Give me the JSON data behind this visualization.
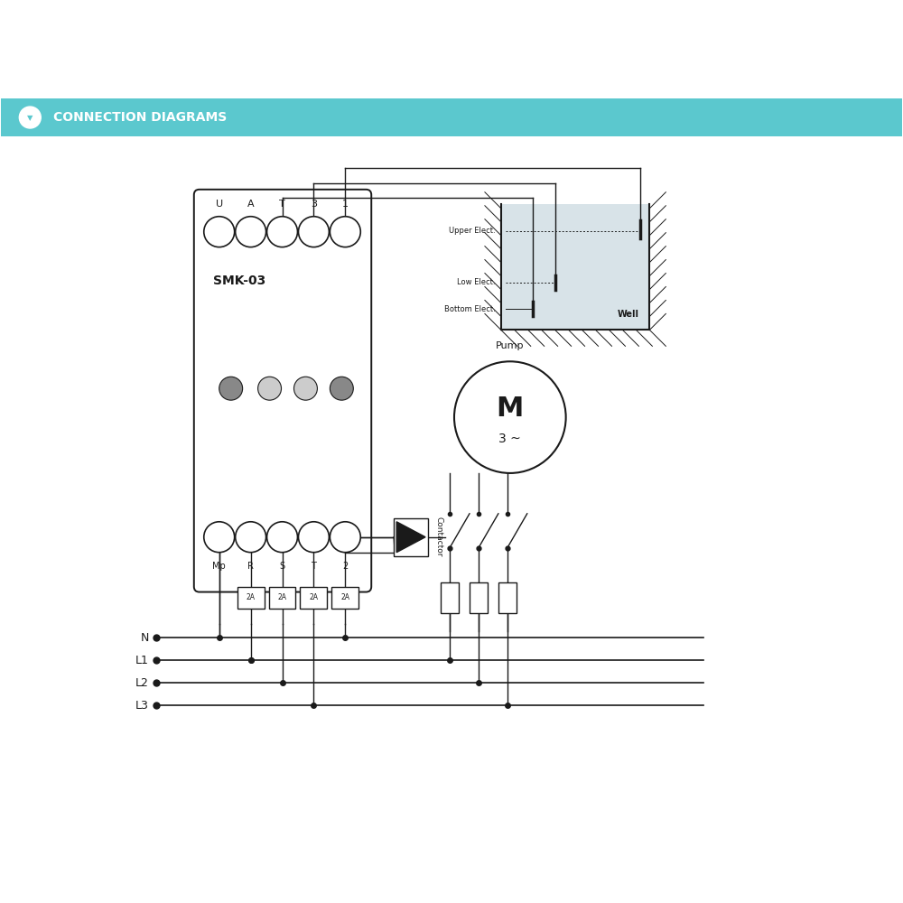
{
  "bg_color": "#ffffff",
  "header_color": "#5bc8ce",
  "header_text": "CONNECTION DIAGRAMS",
  "smk_label": "SMK-03",
  "top_terminals": [
    "U",
    "A",
    "T",
    "3",
    "1"
  ],
  "bottom_terminals": [
    "Mp",
    "R",
    "S",
    "T",
    "2"
  ],
  "indicator_colors": [
    "#888888",
    "#cccccc",
    "#cccccc",
    "#888888"
  ],
  "motor_label": "M",
  "motor_sublabel": "3 ~",
  "pump_label": "Pump",
  "contactor_label": "Contactor",
  "well_label": "Well",
  "upper_elect_label": "Upper Elect.",
  "low_elect_label": "Low Elect.",
  "bottom_elect_label": "Bottom Elect.",
  "fuse_labels": [
    "2A",
    "2A",
    "2A",
    "2A"
  ],
  "line_labels": [
    "N",
    "L1",
    "L2",
    "L3"
  ],
  "line_color": "#1a1a1a",
  "water_color": "#b8cdd6"
}
